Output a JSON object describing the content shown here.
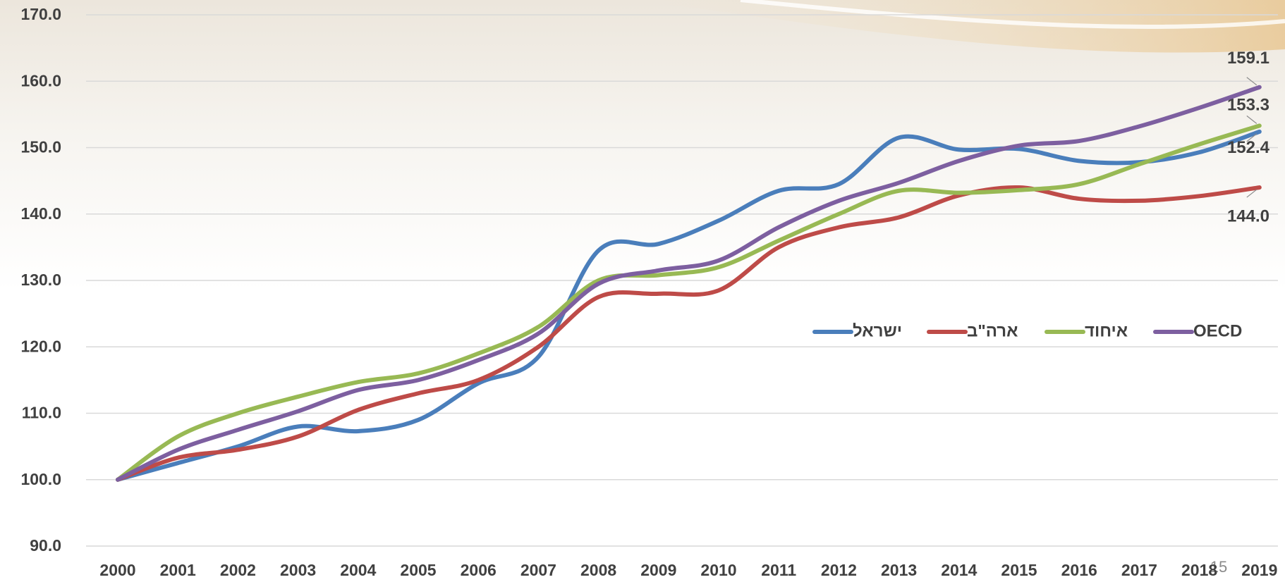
{
  "chart_data": {
    "type": "line",
    "categories": [
      "2000",
      "2001",
      "2002",
      "2003",
      "2004",
      "2005",
      "2006",
      "2007",
      "2008",
      "2009",
      "2010",
      "2011",
      "2012",
      "2013",
      "2014",
      "2015",
      "2016",
      "2017",
      "2018",
      "2019"
    ],
    "ylim": [
      90,
      170
    ],
    "yticks": [
      {
        "value": 90,
        "label": "90.0"
      },
      {
        "value": 100,
        "label": "100.0"
      },
      {
        "value": 110,
        "label": "110.0"
      },
      {
        "value": 120,
        "label": "120.0"
      },
      {
        "value": 130,
        "label": "130.0"
      },
      {
        "value": 140,
        "label": "140.0"
      },
      {
        "value": 150,
        "label": "150.0"
      },
      {
        "value": 160,
        "label": "160.0"
      },
      {
        "value": 170,
        "label": "170.0"
      }
    ],
    "grid": true,
    "legend": "right",
    "series": [
      {
        "name": "ישראל",
        "color": "#4a7ebb",
        "values": [
          100,
          102.5,
          105,
          108,
          107.3,
          109,
          114.5,
          118.5,
          134.5,
          135.5,
          139,
          143.5,
          144.5,
          151.5,
          149.7,
          149.8,
          148,
          147.8,
          149.3,
          152.4
        ],
        "value_labels": [
          null,
          null,
          null,
          null,
          null,
          null,
          null,
          null,
          null,
          null,
          null,
          null,
          null,
          null,
          null,
          null,
          null,
          null,
          null,
          "152.4"
        ]
      },
      {
        "name": "ארה\"ב",
        "color": "#be4b48",
        "values": [
          100,
          103.3,
          104.5,
          106.5,
          110.5,
          113,
          115,
          120,
          127.5,
          128,
          128.5,
          135,
          138,
          139.5,
          142.8,
          144,
          142.3,
          142,
          142.7,
          144.0
        ],
        "value_labels": [
          null,
          null,
          null,
          null,
          null,
          null,
          null,
          null,
          null,
          null,
          null,
          null,
          null,
          null,
          null,
          null,
          null,
          null,
          null,
          "144.0"
        ]
      },
      {
        "name": "איחוד",
        "color": "#98b954",
        "values": [
          100,
          106.5,
          110,
          112.5,
          114.7,
          116,
          119,
          123,
          130,
          130.8,
          132,
          136,
          140,
          143.5,
          143.2,
          143.6,
          144.5,
          147.5,
          150.5,
          153.3
        ],
        "value_labels": [
          null,
          null,
          null,
          null,
          null,
          null,
          null,
          null,
          null,
          null,
          null,
          null,
          null,
          null,
          null,
          null,
          null,
          null,
          null,
          "153.3"
        ]
      },
      {
        "name": "OECD",
        "color": "#7d5fa0",
        "values": [
          100,
          104.5,
          107.5,
          110.3,
          113.5,
          115,
          118,
          122,
          129.5,
          131.5,
          133,
          138,
          142,
          144.7,
          148,
          150.3,
          151,
          153.2,
          156,
          159.1
        ],
        "value_labels": [
          null,
          null,
          null,
          null,
          null,
          null,
          null,
          null,
          null,
          null,
          null,
          null,
          null,
          null,
          null,
          null,
          null,
          null,
          null,
          "159.1"
        ]
      }
    ],
    "page_number": "15"
  }
}
